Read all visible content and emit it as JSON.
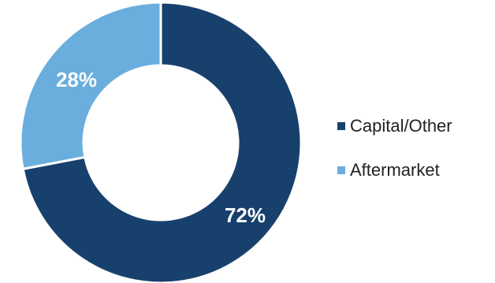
{
  "chart_data": {
    "type": "pie",
    "donut": true,
    "title": "",
    "start_angle_deg": 0,
    "direction": "clockwise",
    "categories": [
      "Capital/Other",
      "Aftermarket"
    ],
    "values": [
      72,
      28
    ],
    "labels": [
      "72%",
      "28%"
    ],
    "colors": [
      "#17406d",
      "#6aaedd"
    ],
    "legend": "right"
  }
}
